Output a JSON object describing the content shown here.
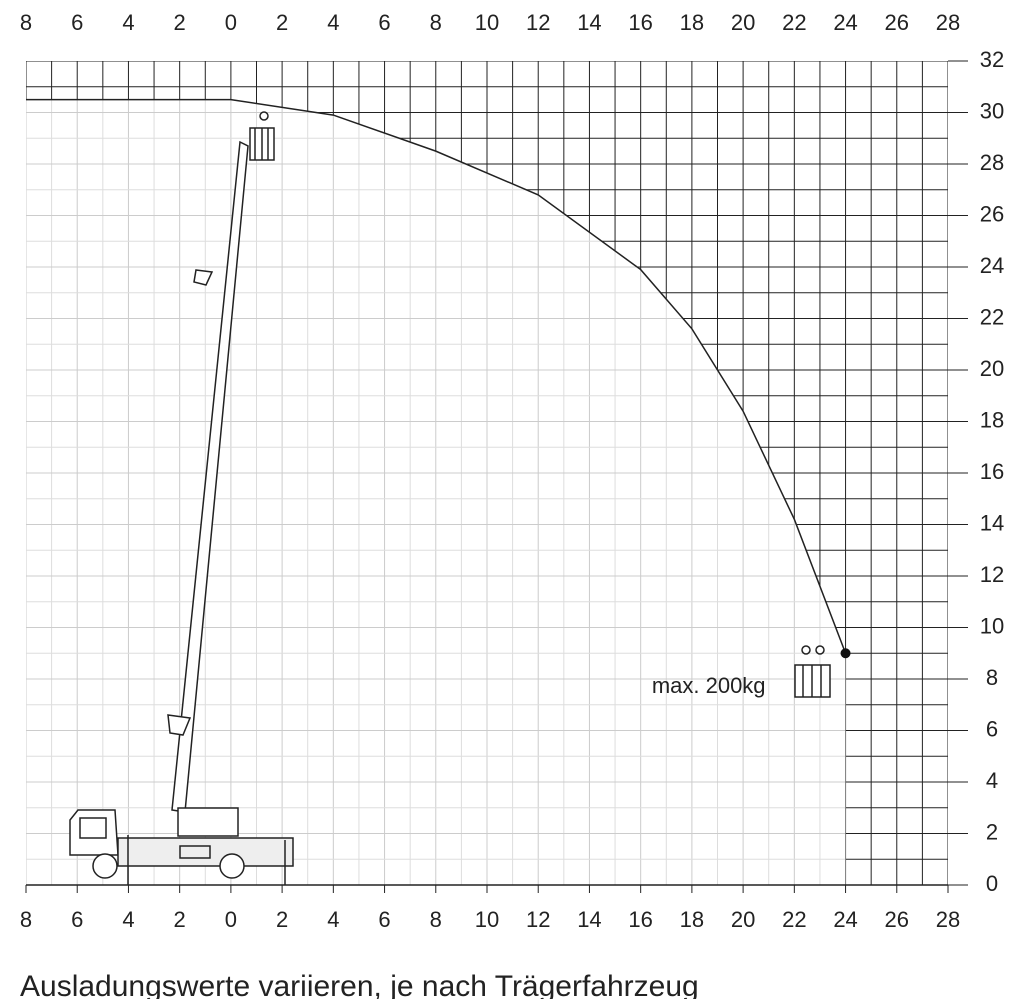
{
  "chart_data": {
    "type": "envelope",
    "xticks": [
      {
        "value": -8,
        "label": "8"
      },
      {
        "value": -6,
        "label": "6"
      },
      {
        "value": -4,
        "label": "4"
      },
      {
        "value": -2,
        "label": "2"
      },
      0,
      2,
      4,
      6,
      8,
      10,
      12,
      14,
      16,
      18,
      20,
      22,
      24,
      26,
      28
    ],
    "yticks": [
      0,
      2,
      4,
      6,
      8,
      10,
      12,
      14,
      16,
      18,
      20,
      22,
      24,
      26,
      28,
      30,
      32
    ],
    "xlim": [
      -8,
      28
    ],
    "ylim": [
      0,
      32
    ],
    "envelope": {
      "x": [
        -8,
        0,
        4,
        8,
        12,
        16,
        18,
        20,
        22,
        24
      ],
      "y": [
        30.5,
        30.5,
        29.9,
        28.5,
        26.8,
        23.9,
        21.6,
        18.4,
        14.2,
        9
      ]
    },
    "max_point": {
      "x": 24,
      "y": 9,
      "label": "max. 200kg"
    },
    "caption": "Ausladungswerte variieren, je nach Trägerfahrzeug"
  }
}
